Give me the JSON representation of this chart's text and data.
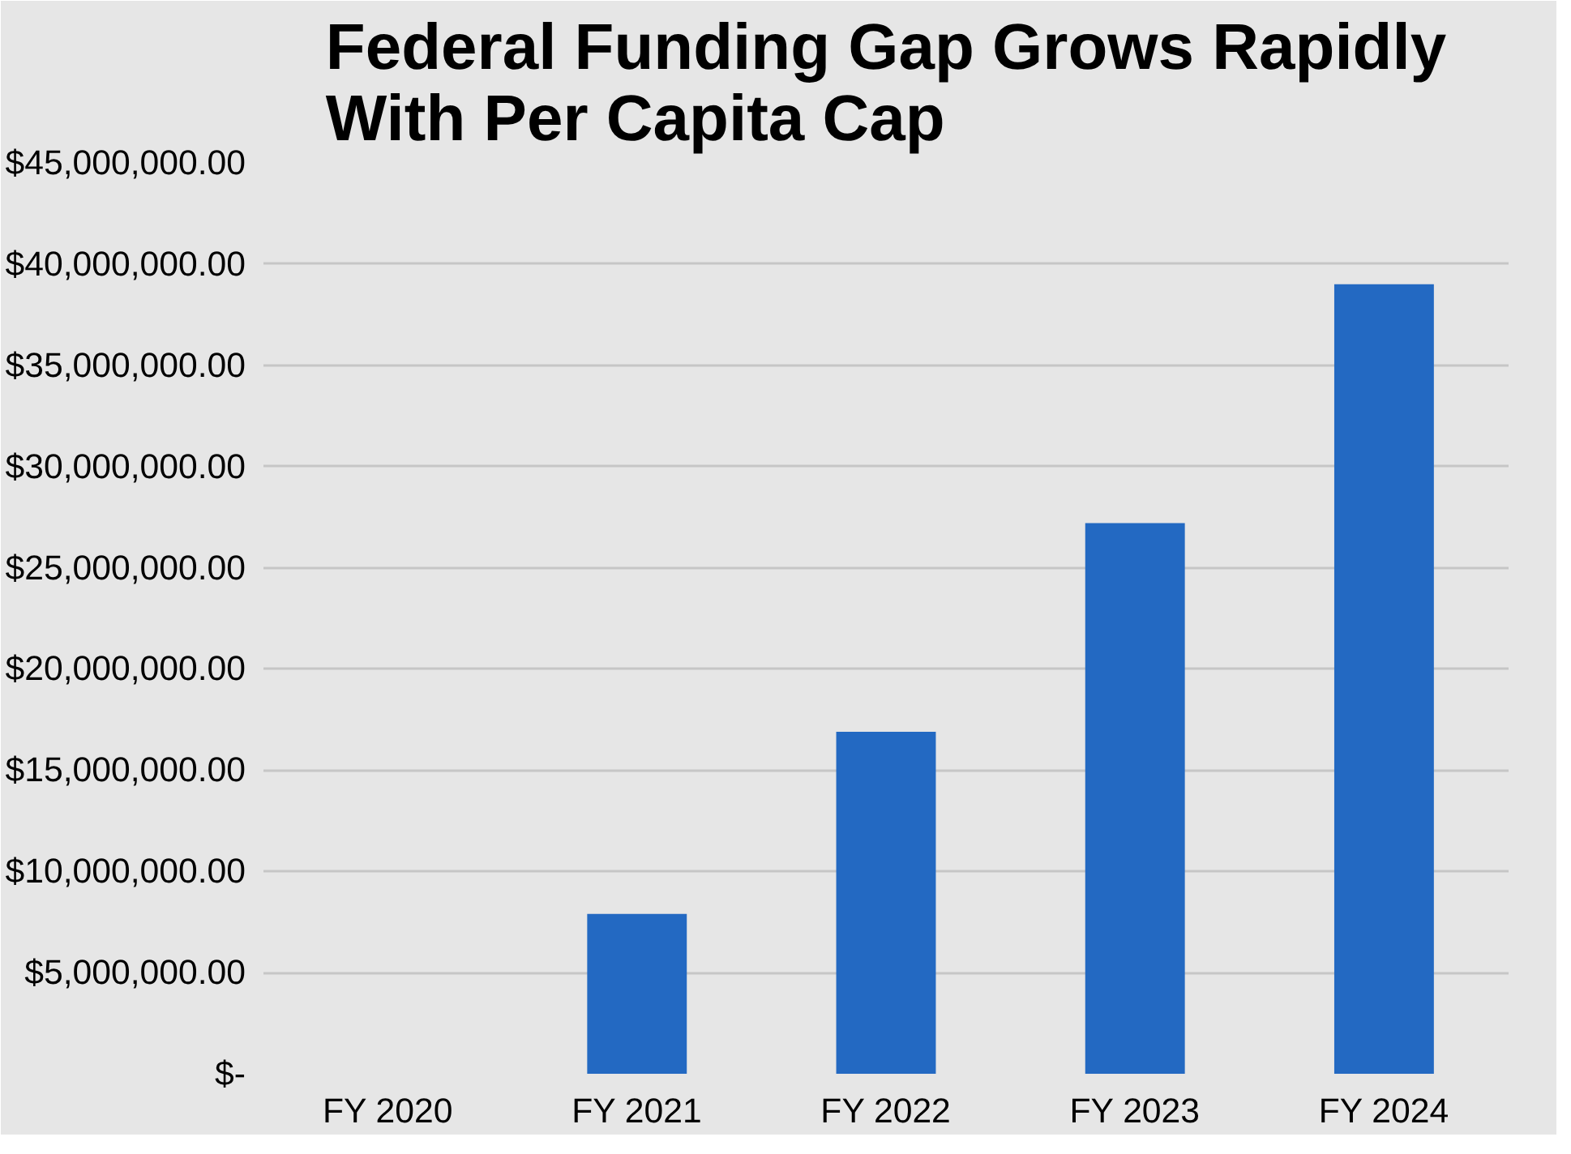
{
  "chart_data": {
    "type": "bar",
    "title": "Federal Funding Gap Grows Rapidly\nWith Per Capita Cap",
    "categories": [
      "FY 2020",
      "FY 2021",
      "FY 2022",
      "FY 2023",
      "FY 2024"
    ],
    "values": [
      0,
      7900000,
      16900000,
      27200000,
      39000000
    ],
    "color": "#2369c2",
    "ylim": [
      0,
      45000000
    ],
    "yticks": [
      {
        "value": 0,
        "label": "$-"
      },
      {
        "value": 5000000,
        "label": "$5,000,000.00"
      },
      {
        "value": 10000000,
        "label": "$10,000,000.00"
      },
      {
        "value": 15000000,
        "label": "$15,000,000.00"
      },
      {
        "value": 20000000,
        "label": "$20,000,000.00"
      },
      {
        "value": 25000000,
        "label": "$25,000,000.00"
      },
      {
        "value": 30000000,
        "label": "$30,000,000.00"
      },
      {
        "value": 35000000,
        "label": "$35,000,000.00"
      },
      {
        "value": 40000000,
        "label": "$40,000,000.00"
      },
      {
        "value": 45000000,
        "label": "$45,000,000.00"
      }
    ],
    "grid": "y"
  }
}
